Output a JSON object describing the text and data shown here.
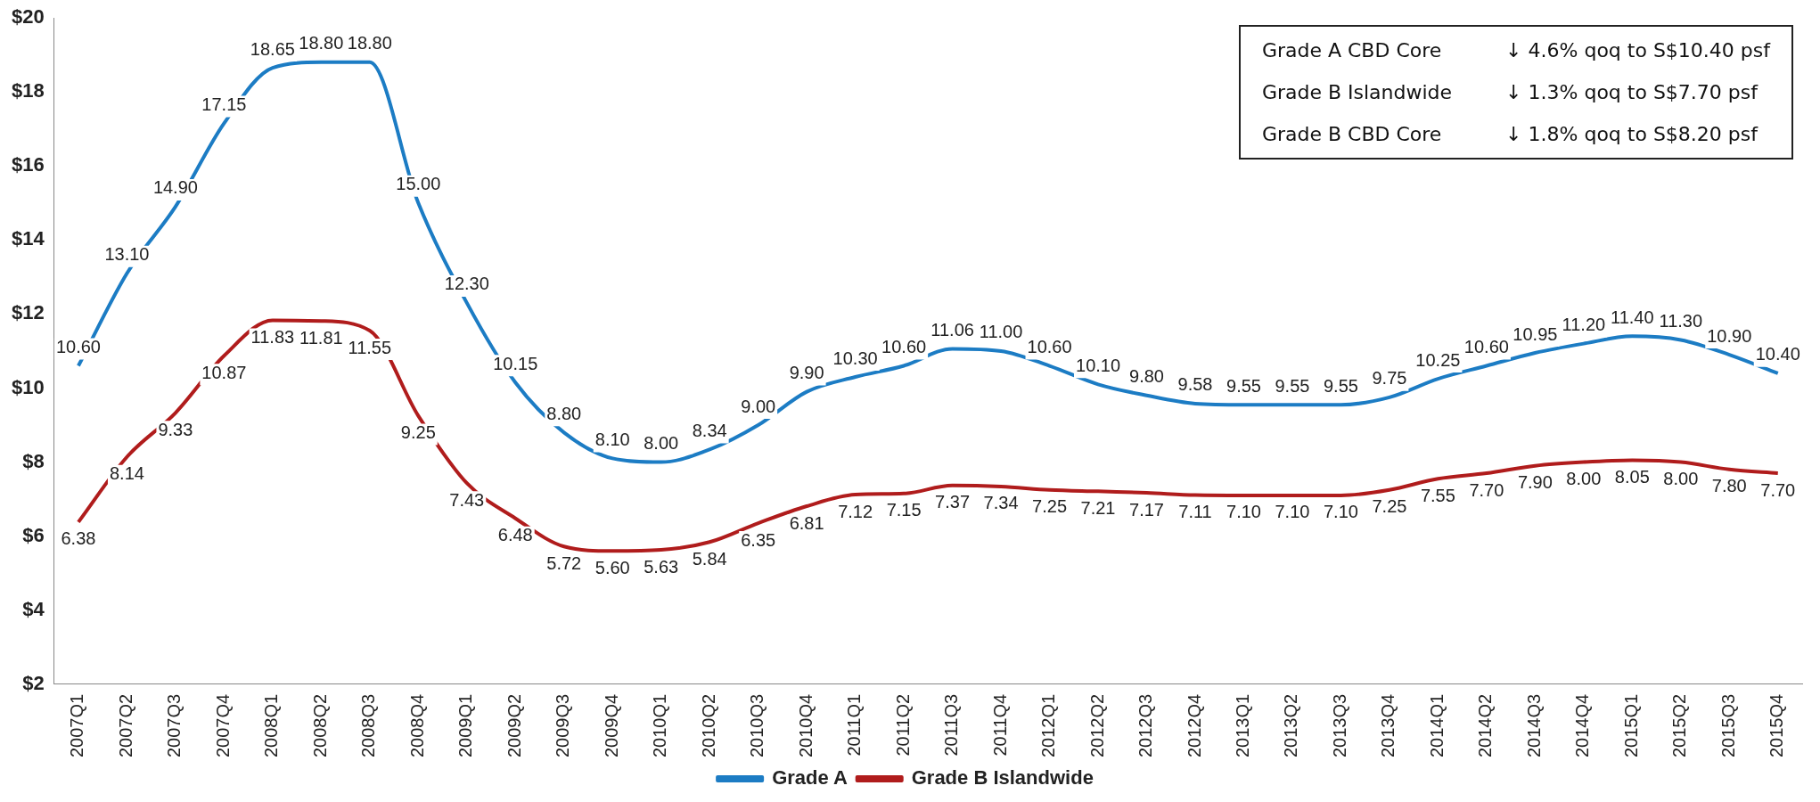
{
  "chart_data": {
    "type": "line",
    "categories": [
      "2007Q1",
      "2007Q2",
      "2007Q3",
      "2007Q4",
      "2008Q1",
      "2008Q2",
      "2008Q3",
      "2008Q4",
      "2009Q1",
      "2009Q2",
      "2009Q3",
      "2009Q4",
      "2010Q1",
      "2010Q2",
      "2010Q3",
      "2010Q4",
      "2011Q1",
      "2011Q2",
      "2011Q3",
      "2011Q4",
      "2012Q1",
      "2012Q2",
      "2012Q3",
      "2012Q4",
      "2013Q1",
      "2013Q2",
      "2013Q3",
      "2013Q4",
      "2014Q1",
      "2014Q2",
      "2014Q3",
      "2014Q4",
      "2015Q1",
      "2015Q2",
      "2015Q3",
      "2015Q4"
    ],
    "series": [
      {
        "name": "Grade A",
        "color": "#1c7cc4",
        "values": [
          10.6,
          13.1,
          14.9,
          17.15,
          18.65,
          18.8,
          18.8,
          15.0,
          12.3,
          10.15,
          8.8,
          8.1,
          8.0,
          8.34,
          9.0,
          9.9,
          10.3,
          10.6,
          11.06,
          11.0,
          10.6,
          10.1,
          9.8,
          9.58,
          9.55,
          9.55,
          9.55,
          9.75,
          10.25,
          10.6,
          10.95,
          11.2,
          11.4,
          11.3,
          10.9,
          10.4
        ],
        "value_labels": [
          "10.60",
          "13.10",
          "14.90",
          "17.15",
          "18.65",
          "18.80",
          "18.80",
          "15.00",
          "12.30",
          "10.15",
          "8.80",
          "8.10",
          "8.00",
          "8.34",
          "9.00",
          "9.90",
          "10.30",
          "10.60",
          "11.06",
          "11.00",
          "10.60",
          "10.10",
          "9.80",
          "9.58",
          "9.55",
          "9.55",
          "9.55",
          "9.75",
          "10.25",
          "10.60",
          "10.95",
          "11.20",
          "11.40",
          "11.30",
          "10.90",
          "10.40"
        ]
      },
      {
        "name": "Grade B Islandwide",
        "color": "#b01c1c",
        "values": [
          6.38,
          8.14,
          9.33,
          10.87,
          11.83,
          11.81,
          11.55,
          9.25,
          7.43,
          6.48,
          5.72,
          5.6,
          5.63,
          5.84,
          6.35,
          6.81,
          7.12,
          7.15,
          7.37,
          7.34,
          7.25,
          7.21,
          7.17,
          7.11,
          7.1,
          7.1,
          7.1,
          7.25,
          7.55,
          7.7,
          7.9,
          8.0,
          8.05,
          8.0,
          7.8,
          7.7
        ],
        "value_labels": [
          "6.38",
          "8.14",
          "9.33",
          "10.87",
          "11.83",
          "11.81",
          "11.55",
          "9.25",
          "7.43",
          "6.48",
          "5.72",
          "5.60",
          "5.63",
          "5.84",
          "6.35",
          "6.81",
          "7.12",
          "7.15",
          "7.37",
          "7.34",
          "7.25",
          "7.21",
          "7.17",
          "7.11",
          "7.10",
          "7.10",
          "7.10",
          "7.25",
          "7.55",
          "7.70",
          "7.90",
          "8.00",
          "8.05",
          "8.00",
          "7.80",
          "7.70"
        ]
      }
    ],
    "ylim": [
      2,
      20
    ],
    "yticks": [
      {
        "value": 2,
        "label": "$2"
      },
      {
        "value": 4,
        "label": "$4"
      },
      {
        "value": 6,
        "label": "$6"
      },
      {
        "value": 8,
        "label": "$8"
      },
      {
        "value": 10,
        "label": "$10"
      },
      {
        "value": 12,
        "label": "$12"
      },
      {
        "value": 14,
        "label": "$14"
      },
      {
        "value": 16,
        "label": "$16"
      },
      {
        "value": 18,
        "label": "$18"
      },
      {
        "value": 20,
        "label": "$20"
      }
    ],
    "grid": false,
    "legend": "bottom",
    "marker": "none",
    "line_style": "solid",
    "annotations": [
      "Grade A CBD Core",
      "↓ 4.6% qoq to S$10.40 psf",
      "Grade B Islandwide",
      "↓ 1.3% qoq to S$7.70 psf",
      "Grade B CBD Core",
      "↓ 1.8% qoq to S$8.20 psf"
    ]
  }
}
